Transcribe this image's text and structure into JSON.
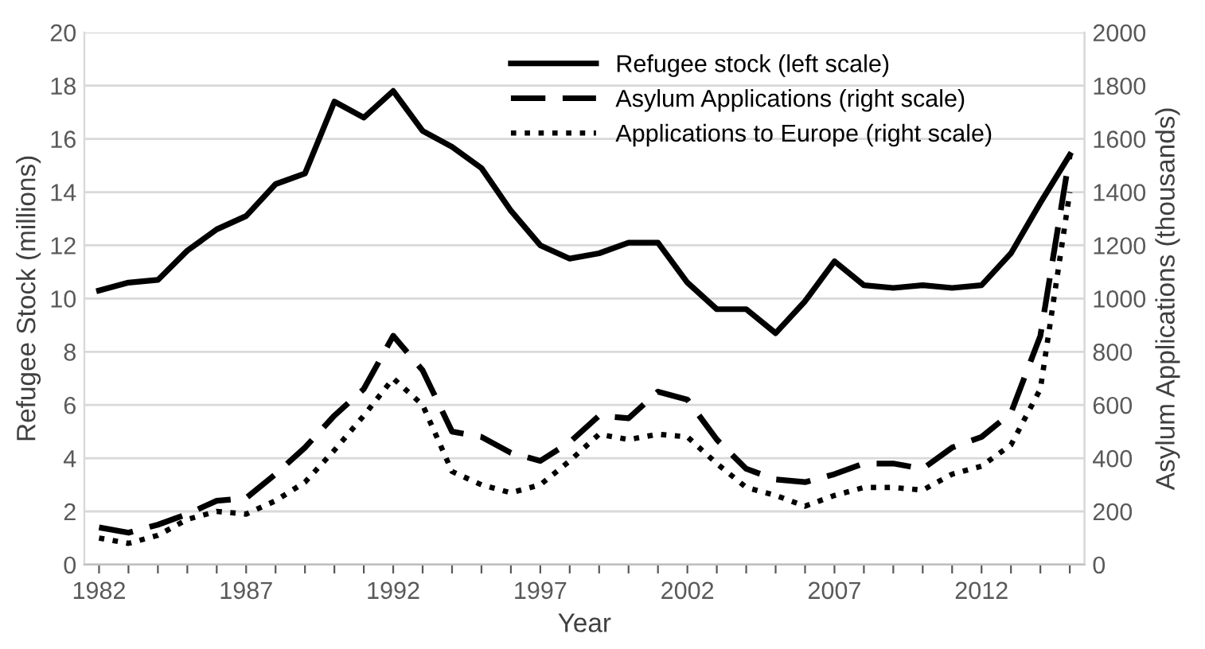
{
  "chart_data": {
    "type": "line",
    "xlabel": "Year",
    "ylabel": "Refugee Stock (millions)",
    "y2label": "Asylum Applications (thousands)",
    "categories": [
      "1982",
      null,
      null,
      null,
      null,
      "1987",
      null,
      null,
      null,
      null,
      "1992",
      null,
      null,
      null,
      null,
      "1997",
      null,
      null,
      null,
      null,
      "2002",
      null,
      null,
      null,
      null,
      "2007",
      null,
      null,
      null,
      null,
      "2012",
      null,
      null,
      null
    ],
    "series": [
      {
        "name": "Refugee stock (left scale)",
        "color": "#000000",
        "line_style": "solid",
        "values": [
          10.3,
          10.6,
          10.7,
          11.8,
          12.6,
          13.1,
          14.3,
          14.7,
          17.4,
          16.8,
          17.8,
          16.3,
          15.7,
          14.9,
          13.3,
          12.0,
          11.5,
          11.7,
          12.1,
          12.1,
          10.6,
          9.6,
          9.6,
          8.7,
          9.9,
          11.4,
          10.5,
          10.4,
          10.5,
          10.4,
          10.5,
          11.7,
          13.6,
          15.4
        ]
      },
      {
        "name": "Asylum Applications (right scale)",
        "color": "#000000",
        "line_style": "dashed",
        "axis": "y2",
        "values": [
          140,
          120,
          150,
          190,
          240,
          250,
          340,
          440,
          560,
          660,
          860,
          730,
          500,
          480,
          420,
          390,
          460,
          560,
          550,
          650,
          620,
          470,
          360,
          320,
          310,
          340,
          380,
          380,
          360,
          440,
          480,
          570,
          860,
          1540
        ]
      },
      {
        "name": "Applications to Europe (right scale)",
        "color": "#000000",
        "line_style": "dotted",
        "axis": "y2",
        "values": [
          100,
          80,
          110,
          170,
          200,
          190,
          240,
          310,
          430,
          560,
          700,
          600,
          350,
          300,
          270,
          300,
          390,
          490,
          470,
          490,
          480,
          380,
          290,
          260,
          220,
          260,
          290,
          290,
          280,
          340,
          370,
          450,
          660,
          1400
        ]
      }
    ],
    "ylim": [
      0,
      20
    ],
    "yticks": [
      0,
      2,
      4,
      6,
      8,
      10,
      12,
      14,
      16,
      18,
      20
    ],
    "y2lim": [
      0,
      2000
    ],
    "y2ticks": [
      0,
      200,
      400,
      600,
      800,
      1000,
      1200,
      1400,
      1600,
      1800,
      2000
    ],
    "grid": "y",
    "legend": "top right"
  }
}
